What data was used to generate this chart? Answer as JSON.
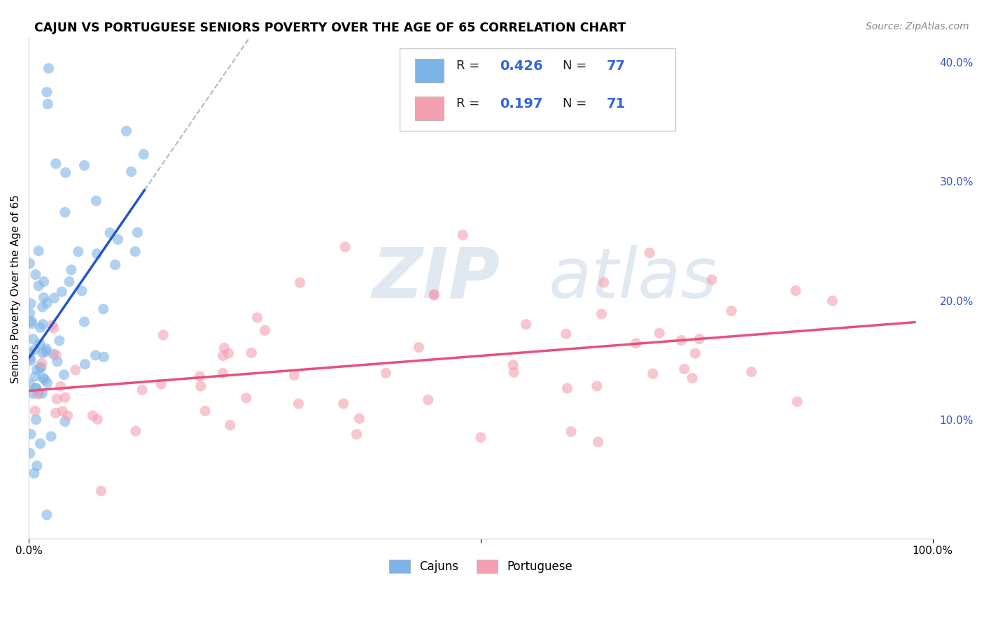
{
  "title": "CAJUN VS PORTUGUESE SENIORS POVERTY OVER THE AGE OF 65 CORRELATION CHART",
  "source": "Source: ZipAtlas.com",
  "ylabel": "Seniors Poverty Over the Age of 65",
  "xlim": [
    0,
    1.0
  ],
  "ylim": [
    0,
    0.42
  ],
  "yticks_right": [
    0.1,
    0.2,
    0.3,
    0.4
  ],
  "yticklabels_right": [
    "10.0%",
    "20.0%",
    "30.0%",
    "40.0%"
  ],
  "cajun_R": 0.426,
  "cajun_N": 77,
  "portuguese_R": 0.197,
  "portuguese_N": 71,
  "cajun_color": "#7EB3E8",
  "portuguese_color": "#F4A0B0",
  "trend_cajun_color": "#2255CC",
  "trend_portuguese_color": "#E8507A",
  "trend_dashed_color": "#AABBCC",
  "watermark_zip_color": "#C8D8E8",
  "watermark_atlas_color": "#C8D8E8",
  "legend_label_cajun": "Cajuns",
  "legend_label_portuguese": "Portuguese",
  "background_color": "#FFFFFF",
  "grid_color": "#CCCCCC",
  "right_tick_color": "#3355CC",
  "legend_R_color": "#000000",
  "legend_val_color": "#3366DD",
  "legend_N_color": "#000000"
}
